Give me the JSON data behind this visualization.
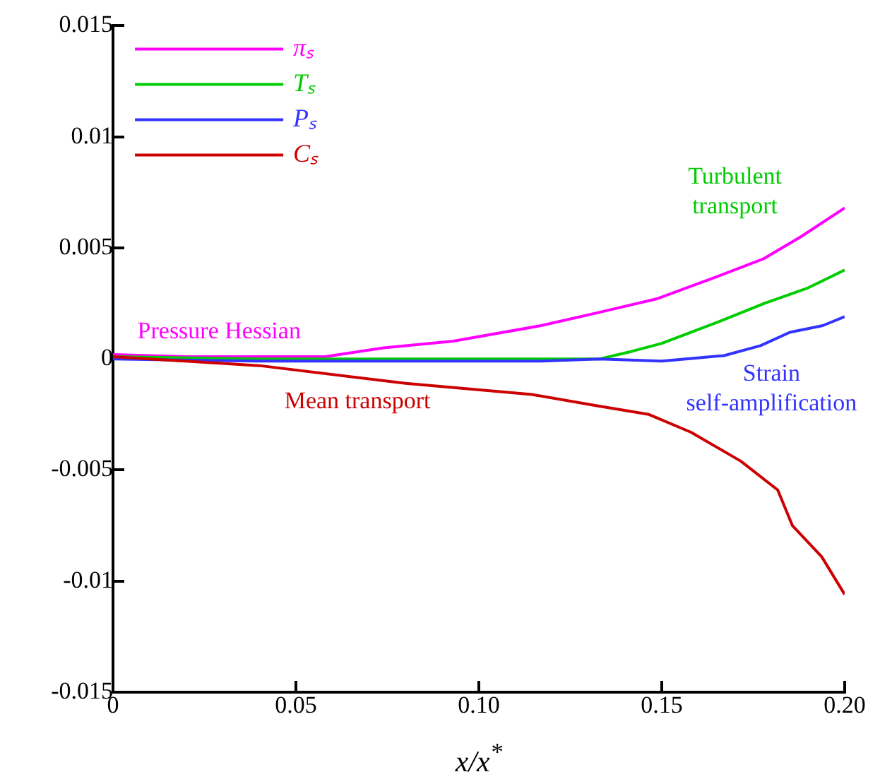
{
  "chart_data": {
    "type": "line",
    "xlabel": "x/x$^{*}$",
    "xlim": [
      0,
      0.2
    ],
    "xticks": [
      0,
      {
        "value": 0.05,
        "label": "0.05"
      },
      {
        "value": 0.1,
        "label": "0.10"
      },
      {
        "value": 0.15,
        "label": "0.15"
      },
      {
        "value": 0.2,
        "label": "0.20"
      }
    ],
    "ylim": [
      -0.015,
      0.015
    ],
    "yticks": [
      -0.015,
      -0.01,
      -0.005,
      0,
      0.005,
      0.01,
      0.015
    ],
    "grid": false,
    "legend": "top left",
    "marker": "none",
    "line_style": "solid",
    "series": [
      {
        "name": "πₛ",
        "color": "#ff00ff",
        "x": [
          0,
          0.02,
          0.04,
          0.058,
          0.074,
          0.093,
          0.117,
          0.133,
          0.1485,
          0.165,
          0.1777,
          0.188,
          0.2
        ],
        "values": [
          0.0002,
          0.0001,
          0.0001,
          0.0001,
          0.0005,
          0.0008,
          0.0015,
          0.0021,
          0.0027,
          0.0037,
          0.0045,
          0.0055,
          0.0068
        ]
      },
      {
        "name": "Tₛ",
        "color": "#00cc00",
        "x": [
          0,
          0.04,
          0.08,
          0.133,
          0.142,
          0.15,
          0.166,
          0.178,
          0.19,
          0.2
        ],
        "values": [
          0.0001,
          0,
          0,
          0,
          0.00035,
          0.0007,
          0.0017,
          0.0025,
          0.0032,
          0.004
        ]
      },
      {
        "name": "Pₛ",
        "color": "#3333ff",
        "x": [
          0,
          0.04,
          0.08,
          0.117,
          0.133,
          0.15,
          0.167,
          0.177,
          0.185,
          0.194,
          0.2
        ],
        "values": [
          0,
          -0.0001,
          -0.0001,
          -0.0001,
          0,
          -0.0001,
          0.00015,
          0.0006,
          0.0012,
          0.0015,
          0.0019
        ]
      },
      {
        "name": "Cₛ",
        "color": "#cc0000",
        "x": [
          0,
          0.04,
          0.08,
          0.1145,
          0.132,
          0.1465,
          0.158,
          0.1716,
          0.1817,
          0.1857,
          0.1937,
          0.2
        ],
        "values": [
          0.0001,
          -0.0003,
          -0.0011,
          -0.0016,
          -0.0021,
          -0.0025,
          -0.0033,
          -0.0046,
          -0.0059,
          -0.0075,
          -0.0089,
          -0.0106
        ]
      }
    ],
    "annotations": [
      "Pressure Hessian",
      "Turbulent\ntransport",
      "Strain\nself-amplification",
      "Mean transport"
    ]
  }
}
